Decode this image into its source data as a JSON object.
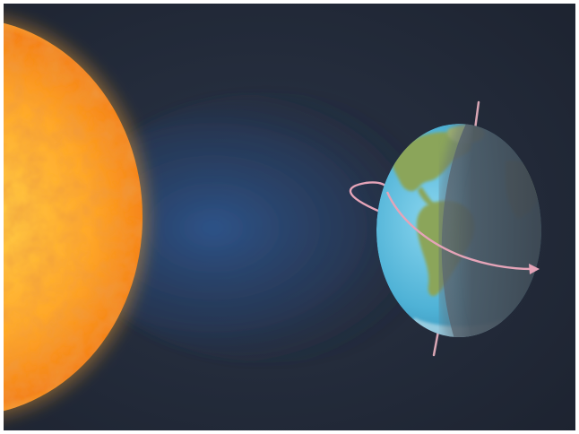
{
  "scene": {
    "subject": "sun-and-earth",
    "background_color": "#232b3a",
    "sun": {
      "colors": [
        "#fff3a6",
        "#ffb52e",
        "#f07a12",
        "#c8480a"
      ]
    },
    "earth": {
      "ocean_color": "#4fb2d6",
      "land_color": "#8ba55a",
      "night_side_color": "#4a5560",
      "axis_color": "#d9a6b4",
      "orbit_arrow_color": "#e5a4b8"
    },
    "light_beam_color": "#2f5ea0"
  }
}
